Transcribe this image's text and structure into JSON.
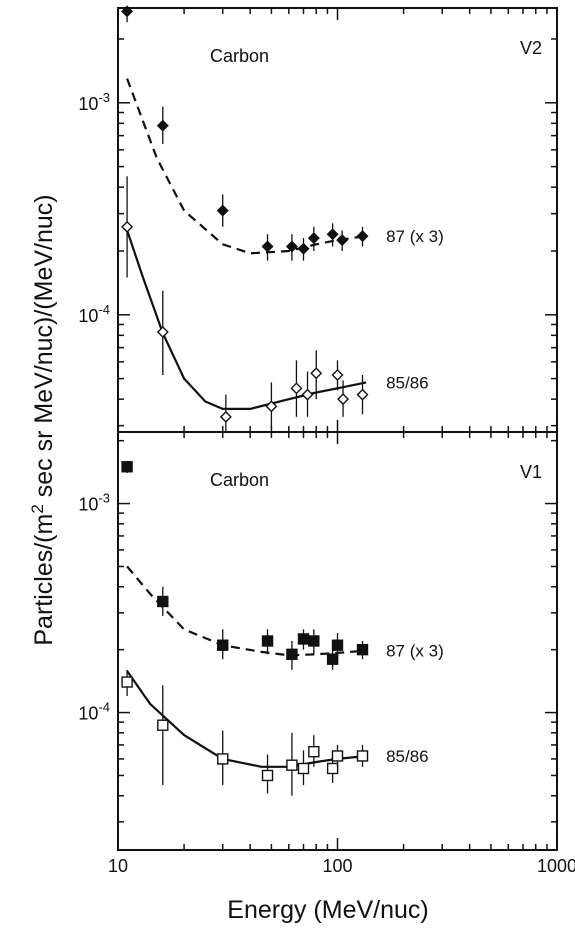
{
  "chart_data": {
    "type": "scatter",
    "xlabel": "Energy (MeV/nuc)",
    "ylabel": "Particles/(m2 sec sr MeV/nuc)/(MeV/nuc)",
    "x_scale": "log",
    "y_scale": "log",
    "xlim": [
      10,
      1000
    ],
    "x_ticks": [
      {
        "value": 10,
        "label": "10"
      },
      {
        "value": 100,
        "label": "100"
      },
      {
        "value": 1000,
        "label": "1000"
      }
    ],
    "panels": [
      {
        "label": "V2",
        "element": "Carbon",
        "ylim": [
          2.8e-05,
          0.0028
        ],
        "y_ticks": [
          {
            "value": 0.001,
            "base": "10",
            "exp": "-3"
          },
          {
            "value": 0.0001,
            "base": "10",
            "exp": "-4"
          }
        ],
        "series": [
          {
            "name": "87 (x 3)",
            "marker": "filled-diamond",
            "curve": "dashed",
            "points": [
              {
                "x": 11,
                "y": 0.0027,
                "err": [
                  0.0024,
                  0.0028
                ]
              },
              {
                "x": 16,
                "y": 0.00078,
                "err": [
                  0.00064,
                  0.00096
                ]
              },
              {
                "x": 30,
                "y": 0.00031,
                "err": [
                  0.00026,
                  0.00037
                ]
              },
              {
                "x": 48,
                "y": 0.00021,
                "err": [
                  0.00018,
                  0.00024
                ]
              },
              {
                "x": 62,
                "y": 0.00021,
                "err": [
                  0.00018,
                  0.00024
                ]
              },
              {
                "x": 70,
                "y": 0.000205,
                "err": [
                  0.00018,
                  0.00023
                ]
              },
              {
                "x": 78,
                "y": 0.00023,
                "err": [
                  0.0002,
                  0.00026
                ]
              },
              {
                "x": 95,
                "y": 0.00024,
                "err": [
                  0.00021,
                  0.00027
                ]
              },
              {
                "x": 105,
                "y": 0.000225,
                "err": [
                  0.0002,
                  0.00025
                ]
              },
              {
                "x": 130,
                "y": 0.000235,
                "err": [
                  0.00021,
                  0.00026
                ]
              }
            ],
            "fit": [
              [
                11,
                0.0013
              ],
              [
                15,
                0.00055
              ],
              [
                20,
                0.00031
              ],
              [
                30,
                0.000215
              ],
              [
                40,
                0.000195
              ],
              [
                60,
                0.0002
              ],
              [
                80,
                0.000215
              ],
              [
                100,
                0.000225
              ],
              [
                135,
                0.000235
              ]
            ]
          },
          {
            "name": "85/86",
            "marker": "open-diamond",
            "curve": "solid",
            "points": [
              {
                "x": 11,
                "y": 0.00026,
                "err": [
                  0.00015,
                  0.00045
                ]
              },
              {
                "x": 16,
                "y": 8.3e-05,
                "err": [
                  5.2e-05,
                  0.00013
                ]
              },
              {
                "x": 31,
                "y": 3.3e-05,
                "err": [
                  2.8e-05,
                  4.2e-05
                ]
              },
              {
                "x": 50,
                "y": 3.7e-05,
                "err": [
                  2.9e-05,
                  4.8e-05
                ]
              },
              {
                "x": 65,
                "y": 4.5e-05,
                "err": [
                  3.3e-05,
                  6.1e-05
                ]
              },
              {
                "x": 73,
                "y": 4.2e-05,
                "err": [
                  3.3e-05,
                  5.4e-05
                ]
              },
              {
                "x": 80,
                "y": 5.3e-05,
                "err": [
                  4e-05,
                  6.8e-05
                ]
              },
              {
                "x": 100,
                "y": 5.2e-05,
                "err": [
                  4.4e-05,
                  6.1e-05
                ]
              },
              {
                "x": 106,
                "y": 4e-05,
                "err": [
                  3.3e-05,
                  4.9e-05
                ]
              },
              {
                "x": 130,
                "y": 4.2e-05,
                "err": [
                  3.4e-05,
                  5.2e-05
                ]
              }
            ],
            "fit": [
              [
                11,
                0.00025
              ],
              [
                13,
                0.00015
              ],
              [
                16,
                8.2e-05
              ],
              [
                20,
                5e-05
              ],
              [
                25,
                3.9e-05
              ],
              [
                30,
                3.6e-05
              ],
              [
                40,
                3.6e-05
              ],
              [
                60,
                4e-05
              ],
              [
                80,
                4.3e-05
              ],
              [
                100,
                4.5e-05
              ],
              [
                135,
                4.8e-05
              ]
            ]
          }
        ]
      },
      {
        "label": "V1",
        "element": "Carbon",
        "ylim": [
          2.2e-05,
          0.0022
        ],
        "y_ticks": [
          {
            "value": 0.001,
            "base": "10",
            "exp": "-3"
          },
          {
            "value": 0.0001,
            "base": "10",
            "exp": "-4"
          }
        ],
        "series": [
          {
            "name": "87 (x 3)",
            "marker": "filled-square",
            "curve": "dashed",
            "points": [
              {
                "x": 11,
                "y": 0.0015,
                "err": [
                  0.0014,
                  0.0016
                ]
              },
              {
                "x": 16,
                "y": 0.00034,
                "err": [
                  0.00029,
                  0.0004
                ]
              },
              {
                "x": 30,
                "y": 0.00021,
                "err": [
                  0.00018,
                  0.00025
                ]
              },
              {
                "x": 48,
                "y": 0.00022,
                "err": [
                  0.00019,
                  0.00025
                ]
              },
              {
                "x": 62,
                "y": 0.00019,
                "err": [
                  0.00016,
                  0.00022
                ]
              },
              {
                "x": 70,
                "y": 0.000225,
                "err": [
                  0.0002,
                  0.00025
                ]
              },
              {
                "x": 78,
                "y": 0.00022,
                "err": [
                  0.00019,
                  0.00025
                ]
              },
              {
                "x": 95,
                "y": 0.00018,
                "err": [
                  0.00016,
                  0.000205
                ]
              },
              {
                "x": 100,
                "y": 0.00021,
                "err": [
                  0.00018,
                  0.00024
                ]
              },
              {
                "x": 130,
                "y": 0.0002,
                "err": [
                  0.00018,
                  0.00022
                ]
              }
            ],
            "fit": [
              [
                11,
                0.0005
              ],
              [
                14,
                0.00037
              ],
              [
                20,
                0.00025
              ],
              [
                30,
                0.00021
              ],
              [
                45,
                0.000195
              ],
              [
                60,
                0.000188
              ],
              [
                80,
                0.00019
              ],
              [
                100,
                0.000193
              ],
              [
                135,
                0.000198
              ]
            ]
          },
          {
            "name": "85/86",
            "marker": "open-square",
            "curve": "solid",
            "points": [
              {
                "x": 11,
                "y": 0.00014,
                "err": [
                  0.00012,
                  0.00016
                ]
              },
              {
                "x": 16,
                "y": 8.7e-05,
                "err": [
                  4.5e-05,
                  0.000135
                ]
              },
              {
                "x": 30,
                "y": 6e-05,
                "err": [
                  4.5e-05,
                  8.2e-05
                ]
              },
              {
                "x": 48,
                "y": 5e-05,
                "err": [
                  4.1e-05,
                  6.3e-05
                ]
              },
              {
                "x": 62,
                "y": 5.6e-05,
                "err": [
                  4e-05,
                  8e-05
                ]
              },
              {
                "x": 70,
                "y": 5.4e-05,
                "err": [
                  4.5e-05,
                  6.6e-05
                ]
              },
              {
                "x": 78,
                "y": 6.5e-05,
                "err": [
                  5.5e-05,
                  7.8e-05
                ]
              },
              {
                "x": 95,
                "y": 5.4e-05,
                "err": [
                  4.6e-05,
                  6.4e-05
                ]
              },
              {
                "x": 100,
                "y": 6.2e-05,
                "err": [
                  5.5e-05,
                  7e-05
                ]
              },
              {
                "x": 130,
                "y": 6.2e-05,
                "err": [
                  5.5e-05,
                  7e-05
                ]
              }
            ],
            "fit": [
              [
                11,
                0.000158
              ],
              [
                14,
                0.00011
              ],
              [
                20,
                7.8e-05
              ],
              [
                30,
                6e-05
              ],
              [
                45,
                5.5e-05
              ],
              [
                60,
                5.5e-05
              ],
              [
                80,
                5.8e-05
              ],
              [
                100,
                6e-05
              ],
              [
                135,
                6.2e-05
              ]
            ]
          }
        ]
      }
    ]
  }
}
